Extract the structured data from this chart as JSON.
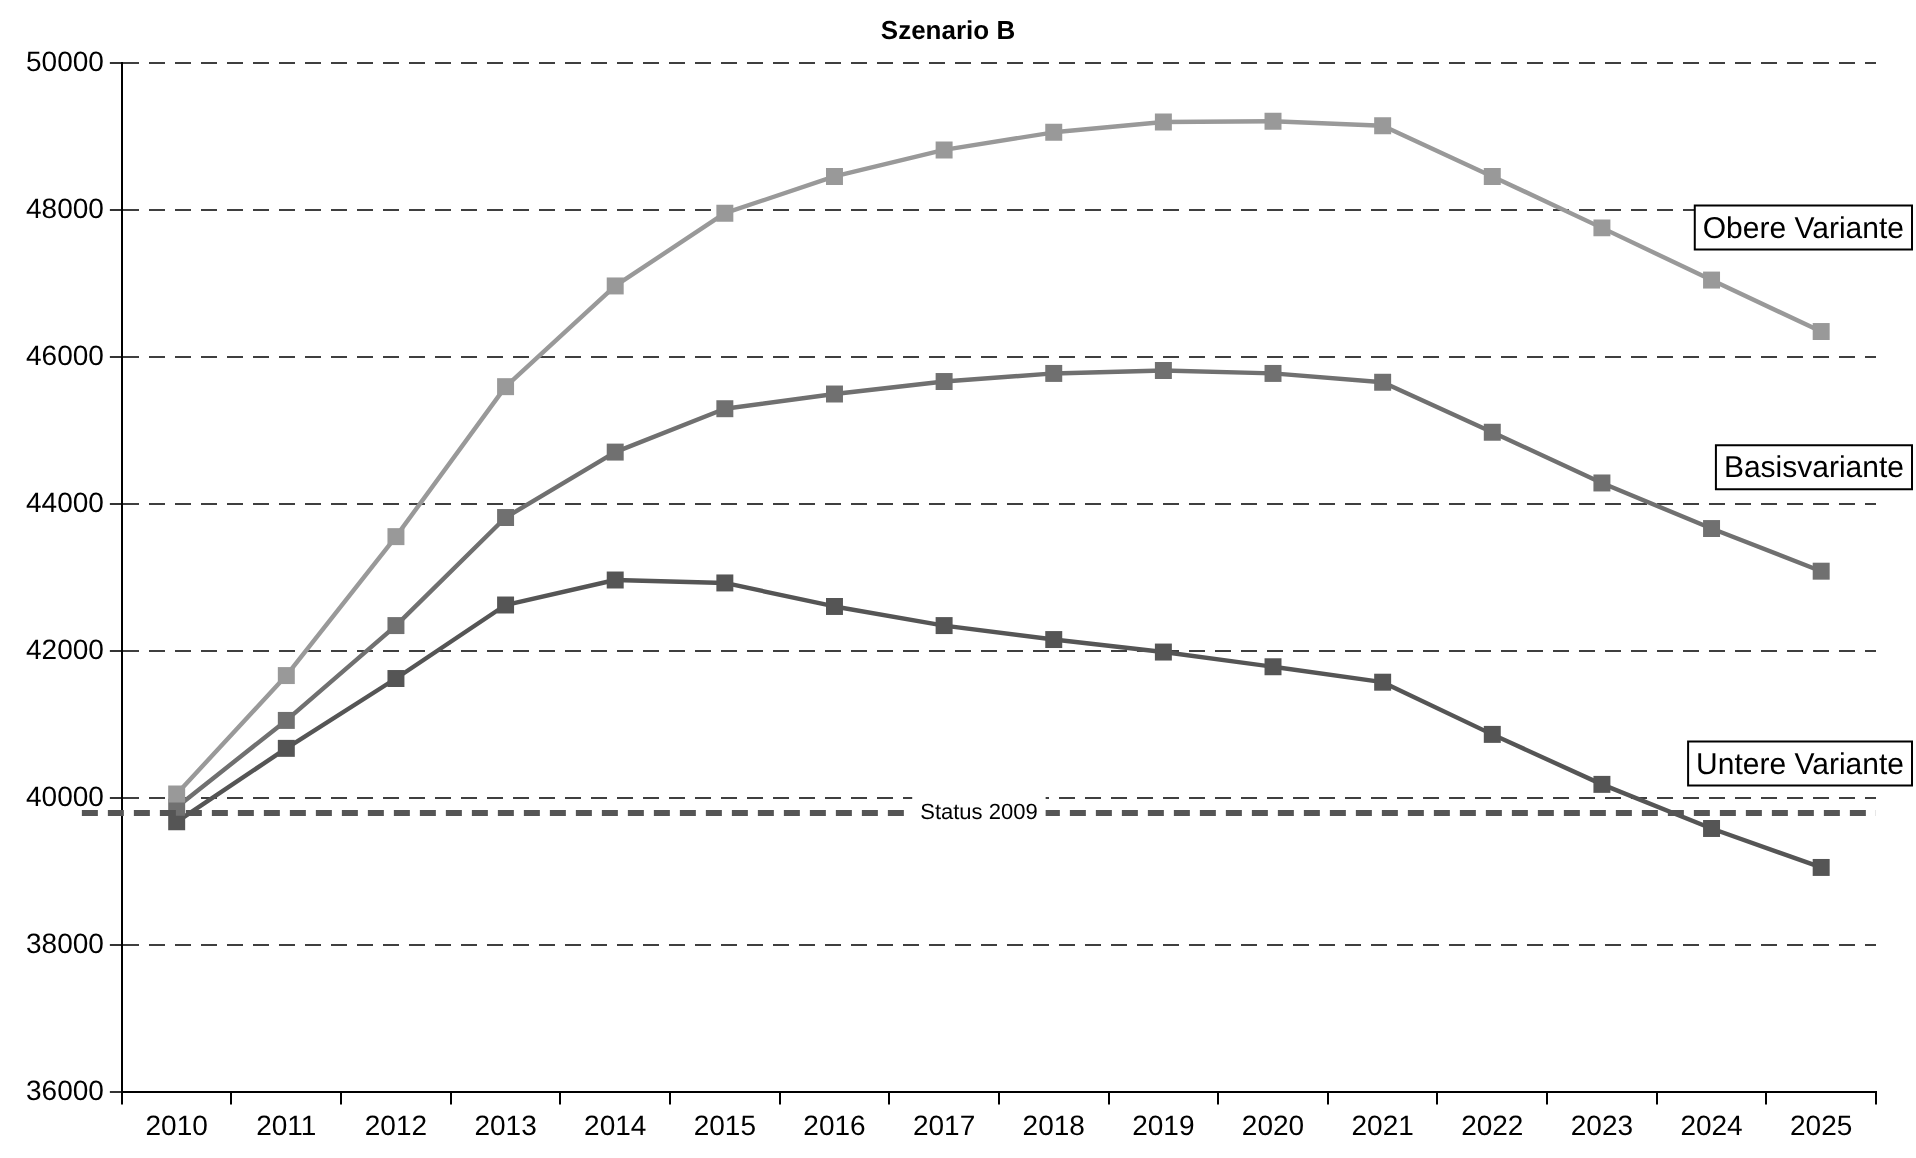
{
  "chart_data": {
    "type": "line",
    "title": "Szenario B",
    "categories": [
      "2010",
      "2011",
      "2012",
      "2013",
      "2014",
      "2015",
      "2016",
      "2017",
      "2018",
      "2019",
      "2020",
      "2021",
      "2022",
      "2023",
      "2024",
      "2025"
    ],
    "series": [
      {
        "name": "Obere Variante",
        "color": "#999999",
        "values": [
          40060,
          41670,
          43560,
          45600,
          46970,
          47960,
          48460,
          48820,
          49060,
          49200,
          49210,
          49150,
          48460,
          47760,
          47050,
          46350
        ]
      },
      {
        "name": "Basisvariante",
        "color": "#707070",
        "values": [
          39880,
          41060,
          42350,
          43820,
          44710,
          45300,
          45500,
          45670,
          45780,
          45820,
          45780,
          45660,
          44980,
          44290,
          43670,
          43090
        ]
      },
      {
        "name": "Untere Variante",
        "color": "#555555",
        "values": [
          39680,
          40680,
          41630,
          42630,
          42970,
          42930,
          42610,
          42350,
          42160,
          41990,
          41790,
          41580,
          40870,
          40190,
          39590,
          39060
        ]
      }
    ],
    "ylim": [
      36000,
      50000
    ],
    "yticks": [
      36000,
      38000,
      40000,
      42000,
      44000,
      46000,
      48000,
      50000
    ],
    "grid": "y",
    "legend": false,
    "marker": "square",
    "line_style": "solid",
    "ref_lines": [
      {
        "axis": "y",
        "value": 39800,
        "label": "Status 2009",
        "color": "#555555",
        "line_style": "dashed"
      }
    ]
  }
}
